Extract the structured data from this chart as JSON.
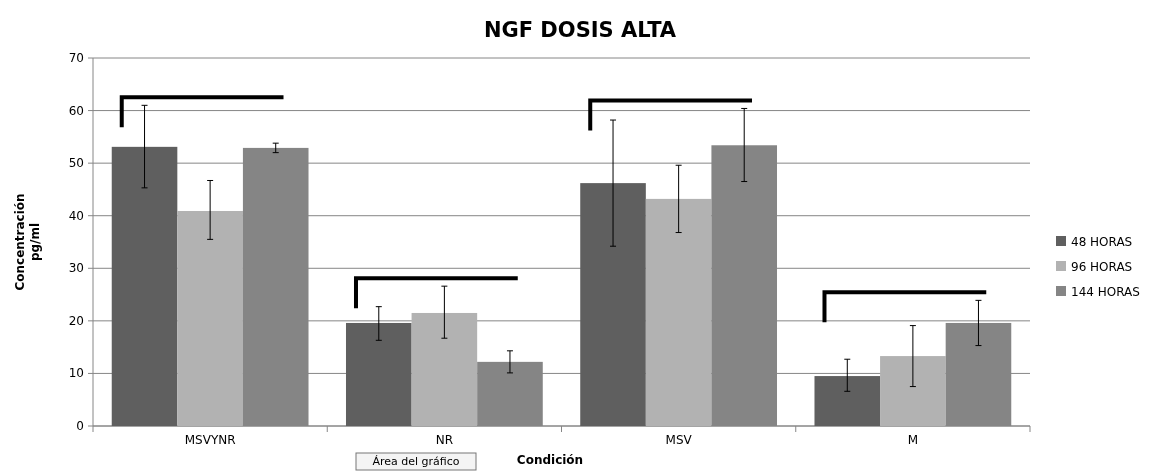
{
  "chart_data": {
    "type": "bar",
    "title": "NGF DOSIS ALTA",
    "xlabel": "Condición",
    "ylabel": "Concentración\npg/ml",
    "categories": [
      "MSVYNR",
      "NR",
      "MSV",
      "M"
    ],
    "series": [
      {
        "name": "48 HORAS",
        "color": "#5f5f5f",
        "values": [
          53.1,
          19.6,
          46.2,
          9.5
        ],
        "errors": [
          [
            45.3,
            61
          ],
          [
            16.3,
            22.7
          ],
          [
            34.2,
            58.2
          ],
          [
            6.6,
            12.7
          ]
        ]
      },
      {
        "name": "96 HORAS",
        "color": "#b2b2b2",
        "values": [
          40.9,
          21.5,
          43.2,
          13.3
        ],
        "errors": [
          [
            35.5,
            46.7
          ],
          [
            16.7,
            26.6
          ],
          [
            36.8,
            49.6
          ],
          [
            7.5,
            19.1
          ]
        ]
      },
      {
        "name": "144 HORAS",
        "color": "#858585",
        "values": [
          52.9,
          12.2,
          53.4,
          19.6
        ],
        "errors": [
          [
            52,
            53.8
          ],
          [
            10.1,
            14.3
          ],
          [
            46.5,
            60.4
          ],
          [
            15.3,
            23.9
          ]
        ]
      }
    ],
    "ylim": [
      0,
      70
    ],
    "yticks": [
      0,
      10,
      20,
      30,
      40,
      50,
      60,
      70
    ],
    "grid": "y",
    "legend": "right",
    "annotations": [
      "Área del gráfico"
    ]
  }
}
